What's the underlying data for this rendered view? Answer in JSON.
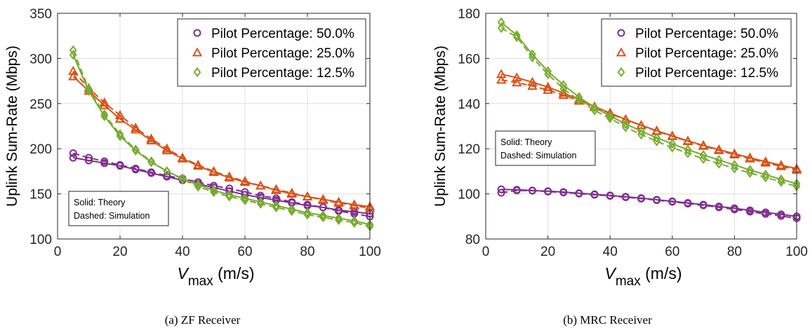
{
  "notes": {
    "solid": "Solid: Theory",
    "dashed": "Dashed: Simulation"
  },
  "chart_data": [
    {
      "type": "line",
      "caption": "(a)  ZF Receiver",
      "xlabel_main": "V",
      "xlabel_sub": "max",
      "xlabel_unit": "(m/s)",
      "ylabel": "Uplink Sum-Rate (Mbps)",
      "xlim": [
        0,
        100
      ],
      "ylim": [
        100,
        350
      ],
      "xticks": [
        0,
        20,
        40,
        60,
        80,
        100
      ],
      "yticks": [
        100,
        150,
        200,
        250,
        300,
        350
      ],
      "grid": true,
      "legend_position": "top-right",
      "notes_position": "bottom-left",
      "x": [
        5,
        10,
        15,
        20,
        25,
        30,
        35,
        40,
        45,
        50,
        55,
        60,
        65,
        70,
        75,
        80,
        85,
        90,
        95,
        100
      ],
      "series": [
        {
          "name": "Pilot Percentage: 50.0%",
          "color": "#7e2f8e",
          "marker": "circle",
          "theory": [
            190,
            187,
            184,
            181,
            177,
            173,
            169,
            165,
            161,
            157,
            153,
            149,
            146,
            143,
            140,
            137,
            135,
            132,
            130,
            128
          ],
          "simulation": [
            195,
            190,
            186,
            182,
            178,
            174,
            170,
            167,
            163,
            159,
            156,
            152,
            148,
            145,
            141,
            138,
            135,
            131,
            128,
            125
          ]
        },
        {
          "name": "Pilot Percentage: 25.0%",
          "color": "#d95319",
          "marker": "triangle",
          "theory": [
            280,
            264,
            248,
            233,
            221,
            209,
            198,
            189,
            181,
            174,
            168,
            163,
            159,
            154,
            150,
            147,
            144,
            141,
            138,
            136
          ],
          "simulation": [
            286,
            267,
            251,
            237,
            223,
            211,
            200,
            190,
            182,
            175,
            169,
            164,
            159,
            155,
            151,
            147,
            143,
            140,
            137,
            134
          ]
        },
        {
          "name": "Pilot Percentage: 12.5%",
          "color": "#77ac30",
          "marker": "diamond",
          "theory": [
            304,
            264,
            236,
            214,
            198,
            185,
            175,
            167,
            160,
            154,
            149,
            145,
            141,
            137,
            133,
            129,
            126,
            123,
            120,
            116
          ],
          "simulation": [
            309,
            266,
            238,
            216,
            199,
            186,
            175,
            166,
            158,
            152,
            147,
            143,
            139,
            135,
            131,
            127,
            124,
            121,
            118,
            114
          ]
        }
      ]
    },
    {
      "type": "line",
      "caption": "(b)  MRC Receiver",
      "xlabel_main": "V",
      "xlabel_sub": "max",
      "xlabel_unit": "(m/s)",
      "ylabel": "Uplink Sum-Rate (Mbps)",
      "xlim": [
        0,
        100
      ],
      "ylim": [
        80,
        180
      ],
      "xticks": [
        0,
        20,
        40,
        60,
        80,
        100
      ],
      "yticks": [
        80,
        100,
        120,
        140,
        160,
        180
      ],
      "grid": true,
      "legend_position": "top-right",
      "notes_position": "middle-left",
      "x": [
        5,
        10,
        15,
        20,
        25,
        30,
        35,
        40,
        45,
        50,
        55,
        60,
        65,
        70,
        75,
        80,
        85,
        90,
        95,
        100
      ],
      "series": [
        {
          "name": "Pilot Percentage: 50.0%",
          "color": "#7e2f8e",
          "marker": "circle",
          "theory": [
            102,
            101.8,
            101.5,
            101.2,
            100.8,
            100.3,
            99.8,
            99.3,
            98.7,
            98.1,
            97.4,
            96.7,
            96,
            95.2,
            94.4,
            93.6,
            92.7,
            91.8,
            90.9,
            90
          ],
          "simulation": [
            100.5,
            101.5,
            101.4,
            101,
            100.6,
            100.1,
            99.6,
            99.1,
            98.5,
            97.9,
            97.2,
            96.5,
            95.7,
            94.9,
            94,
            93.1,
            92.1,
            91.1,
            90.2,
            89.2
          ]
        },
        {
          "name": "Pilot Percentage: 25.0%",
          "color": "#d95319",
          "marker": "triangle",
          "theory": [
            153,
            151.5,
            149.5,
            147.3,
            144.7,
            141.8,
            138.7,
            135.8,
            133,
            130.4,
            128,
            125.7,
            123.5,
            121.5,
            119.6,
            117.8,
            116,
            114.3,
            112.7,
            111.2
          ],
          "simulation": [
            150.5,
            149.3,
            147.8,
            146,
            143.8,
            141.2,
            138.5,
            135.6,
            132.9,
            130.3,
            127.8,
            125.5,
            123.3,
            121.2,
            119.3,
            117.4,
            115.6,
            113.8,
            112.2,
            110.6
          ]
        },
        {
          "name": "Pilot Percentage: 12.5%",
          "color": "#77ac30",
          "marker": "diamond",
          "theory": [
            176,
            170.3,
            161.8,
            154.3,
            148.2,
            142.9,
            138.3,
            134.5,
            131,
            127.8,
            124.8,
            122.2,
            119.6,
            117.2,
            115,
            112.8,
            110.6,
            108.5,
            106.4,
            104.5
          ],
          "simulation": [
            173.5,
            169.5,
            160.5,
            153,
            146.5,
            141.5,
            137,
            133.5,
            129.5,
            126.3,
            123.3,
            120.5,
            118,
            115.5,
            113.4,
            111.3,
            109.3,
            107.3,
            105.3,
            103.3
          ]
        }
      ]
    }
  ]
}
